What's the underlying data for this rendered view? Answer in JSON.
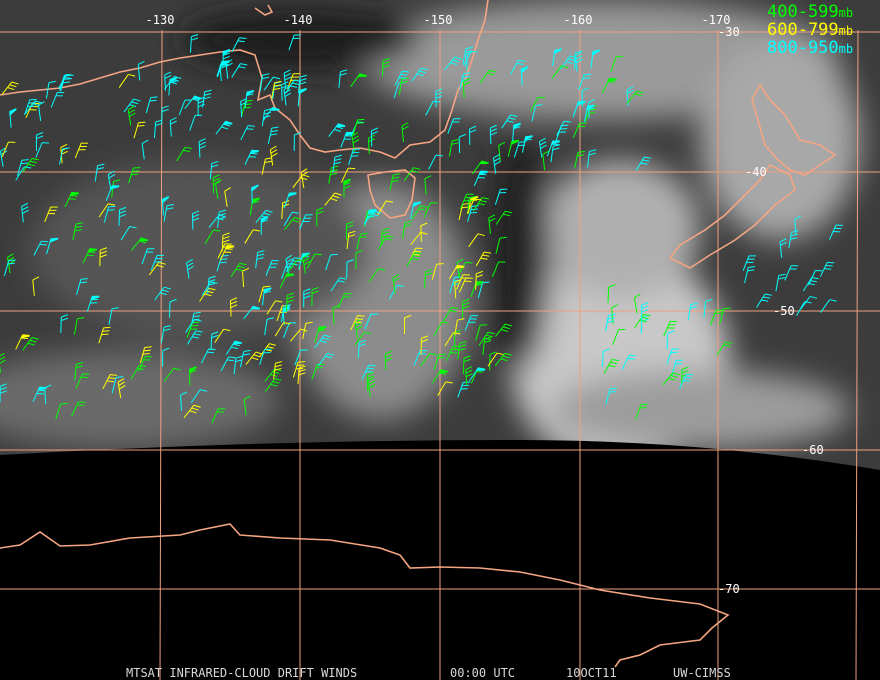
{
  "map": {
    "lon_labels": [
      "-130",
      "-140",
      "-150",
      "-160",
      "-170"
    ],
    "lat_labels": [
      "-30",
      "-40",
      "-50",
      "-60",
      "-70"
    ],
    "legend": [
      {
        "range": "400-599",
        "unit": "mb"
      },
      {
        "range": "600-799",
        "unit": "mb"
      },
      {
        "range": "800-950",
        "unit": "mb"
      }
    ],
    "footer": {
      "product": "MTSAT INFRARED-CLOUD DRIFT WINDS",
      "time": "00:00 UTC",
      "date": "10OCT11",
      "source": "UW-CIMSS"
    }
  }
}
